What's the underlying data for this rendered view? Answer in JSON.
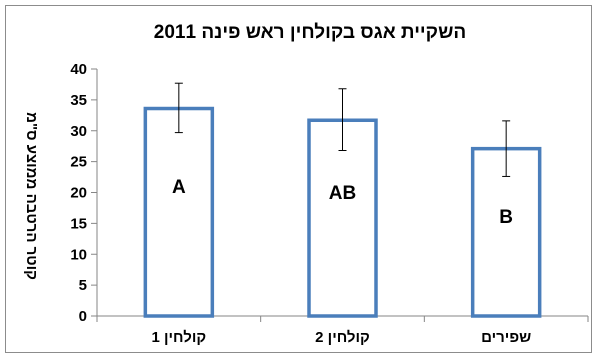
{
  "chart_data": {
    "type": "bar",
    "title": "השקיית אגס בקולחין ראש פינה 2011",
    "ylabel": "קוטר הרטבה ממוצע ס\"מ",
    "xlabel": "",
    "categories": [
      "קולחין 1",
      "קולחין 2",
      "שפירים"
    ],
    "values": [
      33.6,
      31.7,
      27.1
    ],
    "error_low": [
      29.7,
      26.8,
      22.6
    ],
    "error_high": [
      37.7,
      36.8,
      31.6
    ],
    "bar_labels": [
      "A",
      "AB",
      "B"
    ],
    "ylim": [
      0,
      40
    ],
    "yticks": [
      "0",
      "5",
      "10",
      "15",
      "20",
      "25",
      "30",
      "35",
      "40"
    ],
    "grid": false,
    "legend": "none",
    "bar_fill": "#ffffff",
    "bar_stroke": "#4a7ebb"
  }
}
